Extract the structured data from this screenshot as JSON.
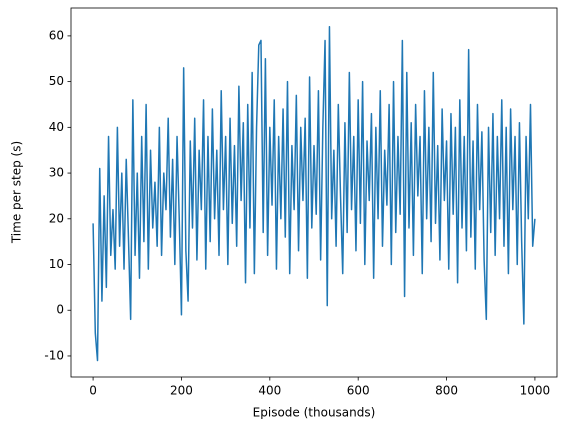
{
  "chart_data": {
    "type": "line",
    "xlabel": "Episode (thousands)",
    "ylabel": "Time per step (s)",
    "x": [
      0,
      5,
      10,
      15,
      20,
      25,
      30,
      35,
      40,
      45,
      50,
      55,
      60,
      65,
      70,
      75,
      80,
      85,
      90,
      95,
      100,
      105,
      110,
      115,
      120,
      125,
      130,
      135,
      140,
      145,
      150,
      155,
      160,
      165,
      170,
      175,
      180,
      185,
      190,
      195,
      200,
      205,
      210,
      215,
      220,
      225,
      230,
      235,
      240,
      245,
      250,
      255,
      260,
      265,
      270,
      275,
      280,
      285,
      290,
      295,
      300,
      305,
      310,
      315,
      320,
      325,
      330,
      335,
      340,
      345,
      350,
      355,
      360,
      365,
      370,
      375,
      380,
      385,
      390,
      395,
      400,
      405,
      410,
      415,
      420,
      425,
      430,
      435,
      440,
      445,
      450,
      455,
      460,
      465,
      470,
      475,
      480,
      485,
      490,
      495,
      500,
      505,
      510,
      515,
      520,
      525,
      530,
      535,
      540,
      545,
      550,
      555,
      560,
      565,
      570,
      575,
      580,
      585,
      590,
      595,
      600,
      605,
      610,
      615,
      620,
      625,
      630,
      635,
      640,
      645,
      650,
      655,
      660,
      665,
      670,
      675,
      680,
      685,
      690,
      695,
      700,
      705,
      710,
      715,
      720,
      725,
      730,
      735,
      740,
      745,
      750,
      755,
      760,
      765,
      770,
      775,
      780,
      785,
      790,
      795,
      800,
      805,
      810,
      815,
      820,
      825,
      830,
      835,
      840,
      845,
      850,
      855,
      860,
      865,
      870,
      875,
      880,
      885,
      890,
      895,
      900,
      905,
      910,
      915,
      920,
      925,
      930,
      935,
      940,
      945,
      950,
      955,
      960,
      965,
      970,
      975,
      980,
      985,
      990,
      995,
      1000
    ],
    "series": [
      {
        "name": "Time per step",
        "color": "#1f77b4",
        "values": [
          19,
          -5,
          -11,
          31,
          2,
          25,
          5,
          38,
          12,
          22,
          9,
          40,
          14,
          30,
          9,
          33,
          16,
          -2,
          46,
          12,
          30,
          7,
          38,
          15,
          45,
          9,
          35,
          18,
          28,
          14,
          40,
          12,
          30,
          22,
          42,
          16,
          33,
          10,
          38,
          20,
          -1,
          53,
          13,
          2,
          37,
          18,
          42,
          11,
          35,
          22,
          46,
          9,
          38,
          15,
          44,
          20,
          35,
          12,
          48,
          22,
          38,
          10,
          42,
          19,
          36,
          14,
          49,
          24,
          41,
          6,
          45,
          18,
          52,
          8,
          40,
          58,
          59,
          17,
          55,
          12,
          40,
          23,
          46,
          9,
          38,
          20,
          44,
          16,
          50,
          8,
          36,
          22,
          47,
          13,
          40,
          24,
          42,
          7,
          51,
          18,
          36,
          21,
          48,
          11,
          40,
          59,
          1,
          62,
          20,
          35,
          14,
          45,
          25,
          8,
          41,
          17,
          52,
          22,
          38,
          13,
          46,
          19,
          50,
          10,
          37,
          24,
          43,
          7,
          40,
          20,
          48,
          14,
          35,
          23,
          45,
          10,
          50,
          17,
          38,
          21,
          59,
          3,
          52,
          18,
          41,
          12,
          45,
          25,
          38,
          8,
          48,
          20,
          40,
          15,
          52,
          19,
          36,
          11,
          44,
          24,
          37,
          9,
          43,
          21,
          40,
          6,
          46,
          18,
          38,
          13,
          57,
          16,
          37,
          9,
          45,
          22,
          39,
          11,
          -2,
          40,
          17,
          43,
          12,
          38,
          20,
          46,
          14,
          40,
          8,
          44,
          22,
          38,
          10,
          41,
          15,
          -3,
          38,
          20,
          45,
          14,
          20
        ]
      }
    ],
    "xlim": [
      -50,
      1050
    ],
    "ylim": [
      -14.6,
      66.1
    ],
    "xticks": [
      0,
      200,
      400,
      600,
      800,
      1000
    ],
    "yticks": [
      -10,
      0,
      10,
      20,
      30,
      40,
      50,
      60
    ]
  }
}
